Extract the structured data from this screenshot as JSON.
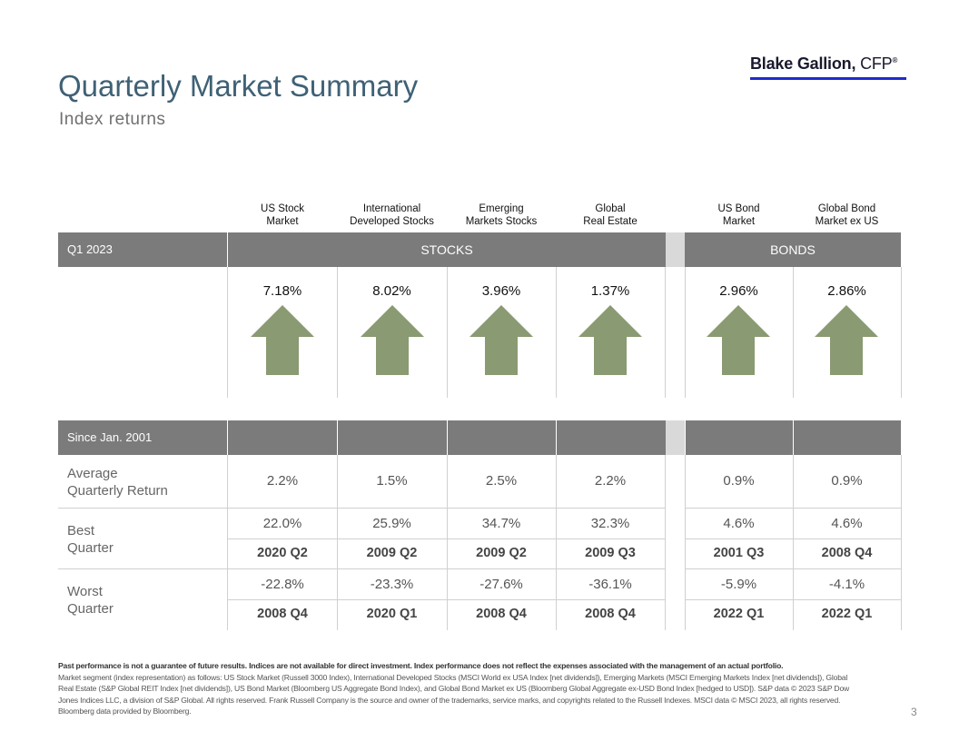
{
  "title": "Quarterly Market Summary",
  "subtitle": "Index returns",
  "logo": {
    "name": "Blake Gallion,",
    "suffix": "CFP",
    "mark": "®"
  },
  "columns": [
    {
      "line1": "US Stock",
      "line2": "Market"
    },
    {
      "line1": "International",
      "line2": "Developed Stocks"
    },
    {
      "line1": "Emerging",
      "line2": "Markets Stocks"
    },
    {
      "line1": "Global",
      "line2": "Real Estate"
    },
    {
      "line1": "US Bond",
      "line2": "Market"
    },
    {
      "line1": "Global Bond",
      "line2": "Market ex US"
    }
  ],
  "quarter": {
    "label": "Q1 2023",
    "stocks_label": "STOCKS",
    "bonds_label": "BONDS",
    "returns": [
      "7.18%",
      "8.02%",
      "3.96%",
      "1.37%",
      "2.96%",
      "2.86%"
    ]
  },
  "since": {
    "label": "Since Jan. 2001",
    "avg_label_1": "Average",
    "avg_label_2": "Quarterly  Return",
    "avg": [
      "2.2%",
      "1.5%",
      "2.5%",
      "2.2%",
      "0.9%",
      "0.9%"
    ],
    "best_label_1": "Best",
    "best_label_2": "Quarter",
    "best": [
      "22.0%",
      "25.9%",
      "34.7%",
      "32.3%",
      "4.6%",
      "4.6%"
    ],
    "best_q": [
      "2020 Q2",
      "2009 Q2",
      "2009 Q2",
      "2009 Q3",
      "2001 Q3",
      "2008 Q4"
    ],
    "worst_label_1": "Worst",
    "worst_label_2": "Quarter",
    "worst": [
      "-22.8%",
      "-23.3%",
      "-27.6%",
      "-36.1%",
      "-5.9%",
      "-4.1%"
    ],
    "worst_q": [
      "2008 Q4",
      "2020 Q1",
      "2008 Q4",
      "2008 Q4",
      "2022 Q1",
      "2022 Q1"
    ]
  },
  "disclaimer": {
    "lead": "Past performance is not a guarantee of future results. Indices are not available for direct investment. Index performance does not reflect the expenses associated with the management of an actual portfolio.",
    "body": "Market segment (index representation) as follows: US Stock Market (Russell 3000 Index), International Developed Stocks (MSCI World ex USA Index [net dividends]), Emerging Markets (MSCI Emerging Markets Index [net dividends]), Global Real Estate (S&P Global REIT Index [net dividends]), US Bond Market (Bloomberg US Aggregate Bond Index), and Global Bond Market ex US (Bloomberg Global Aggregate ex-USD Bond Index [hedged to USD]). S&P data © 2023 S&P Dow Jones Indices LLC, a division of S&P Global. All rights reserved. Frank Russell Company is the source and owner of the trademarks, service marks, and copyrights related to the Russell Indexes. MSCI data © MSCI 2023, all rights reserved. Bloomberg data provided by Bloomberg."
  },
  "page_number": "3",
  "colors": {
    "title": "#3f6176",
    "bar": "#7b7b7b",
    "arrow": "#8a9a72",
    "logo_line": "#1f2bcc"
  },
  "icons": {
    "return_arrow": "up-arrow-icon"
  }
}
